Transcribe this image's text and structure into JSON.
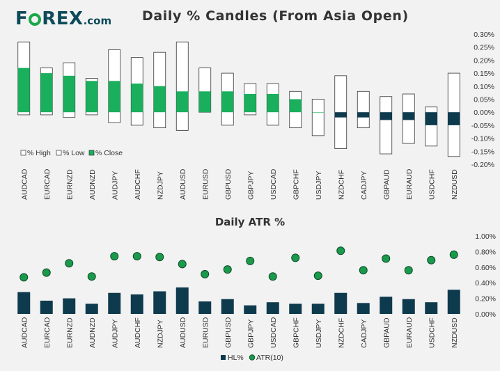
{
  "header": {
    "logo_text": "FOREX",
    "logo_domain": ".com",
    "brand_color": "#0e4a5a",
    "accent_color": "#1aa84a"
  },
  "chart_data": [
    {
      "type": "bar",
      "title": "Daily % Candles (From Asia Open)",
      "categories": [
        "AUDCAD",
        "EURCAD",
        "EURNZD",
        "AUDNZD",
        "AUDJPY",
        "AUDCHF",
        "NZDJPY",
        "AUDUSD",
        "EURUSD",
        "GBPUSD",
        "GBPJPY",
        "USDCAD",
        "GBPCHF",
        "USDJPY",
        "NZDCHF",
        "CADJPY",
        "GBPAUD",
        "EURAUD",
        "USDCHF",
        "NZDUSD"
      ],
      "series": [
        {
          "name": "% High",
          "values": [
            0.27,
            0.17,
            0.19,
            0.13,
            0.24,
            0.21,
            0.23,
            0.27,
            0.17,
            0.15,
            0.11,
            0.11,
            0.08,
            0.05,
            0.14,
            0.08,
            0.06,
            0.07,
            0.02,
            0.15
          ]
        },
        {
          "name": "% Low",
          "values": [
            -0.01,
            -0.01,
            -0.02,
            -0.01,
            -0.04,
            -0.05,
            -0.06,
            -0.07,
            0.0,
            -0.05,
            -0.01,
            -0.05,
            -0.06,
            -0.09,
            -0.14,
            -0.06,
            -0.16,
            -0.12,
            -0.13,
            -0.17
          ]
        },
        {
          "name": "% Close",
          "values": [
            0.17,
            0.15,
            0.14,
            0.12,
            0.12,
            0.11,
            0.1,
            0.08,
            0.08,
            0.08,
            0.07,
            0.07,
            0.05,
            0.0,
            -0.02,
            -0.02,
            -0.03,
            -0.03,
            -0.05,
            -0.05
          ]
        }
      ],
      "yticks": [
        "0.30%",
        "0.25%",
        "0.20%",
        "0.15%",
        "0.10%",
        "0.05%",
        "0.00%",
        "-0.05%",
        "-0.10%",
        "-0.15%",
        "-0.20%"
      ],
      "ylim": [
        -0.2,
        0.3
      ],
      "legend_position": "bottom-left",
      "colors": {
        "close_up": "#1aaf5d",
        "close_down": "#0e3a4d",
        "range": "#ffffff",
        "outline": "#333333"
      }
    },
    {
      "type": "bar",
      "title": "Daily ATR %",
      "categories": [
        "AUDCAD",
        "EURCAD",
        "EURNZD",
        "AUDNZD",
        "AUDJPY",
        "AUDCHF",
        "NZDJPY",
        "AUDUSD",
        "EURUSD",
        "GBPUSD",
        "GBPJPY",
        "USDCAD",
        "GBPCHF",
        "USDJPY",
        "NZDCHF",
        "CADJPY",
        "GBPAUD",
        "EURAUD",
        "USDCHF",
        "NZDUSD"
      ],
      "series": [
        {
          "name": "HL%",
          "type": "bar",
          "values": [
            0.28,
            0.17,
            0.2,
            0.13,
            0.27,
            0.25,
            0.29,
            0.34,
            0.16,
            0.19,
            0.11,
            0.15,
            0.13,
            0.13,
            0.27,
            0.14,
            0.22,
            0.19,
            0.15,
            0.31
          ]
        },
        {
          "name": "ATR(10)",
          "type": "scatter",
          "values": [
            0.47,
            0.53,
            0.65,
            0.48,
            0.74,
            0.74,
            0.73,
            0.64,
            0.51,
            0.57,
            0.68,
            0.48,
            0.72,
            0.49,
            0.81,
            0.56,
            0.71,
            0.56,
            0.69,
            0.76
          ]
        }
      ],
      "yticks": [
        "1.00%",
        "0.80%",
        "0.60%",
        "0.40%",
        "0.20%",
        "0.00%"
      ],
      "ylim": [
        0,
        1.0
      ],
      "legend_position": "bottom-center",
      "colors": {
        "bar": "#0e3a4d",
        "dot": "#1a9a4a"
      }
    }
  ]
}
